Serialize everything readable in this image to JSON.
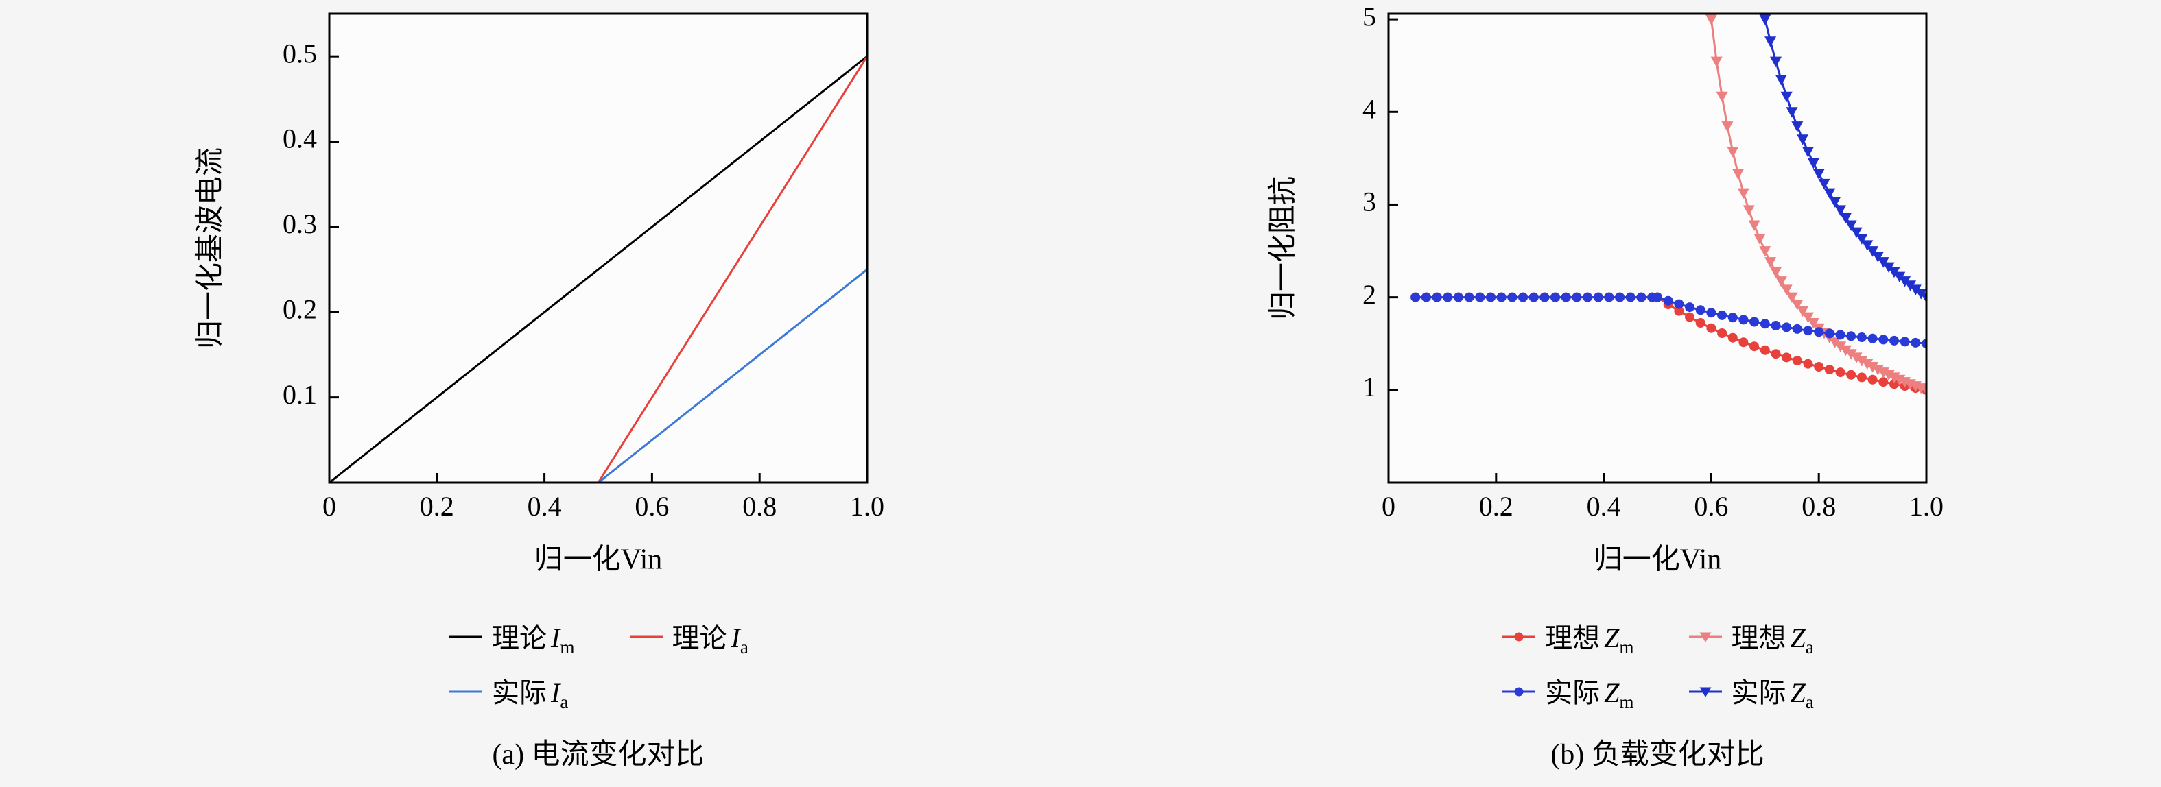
{
  "figure": {
    "background": "#f5f5f5",
    "plot_background": "#fcfcfc",
    "axis_color": "#000000"
  },
  "chart_data": [
    {
      "type": "line",
      "caption": "(a) 电流变化对比",
      "xlabel": "归一化Vin",
      "ylabel": "归一化基波电流",
      "xlim": [
        0,
        1.0
      ],
      "ylim": [
        0,
        0.55
      ],
      "xticks": [
        0,
        0.2,
        0.4,
        0.6,
        0.8,
        1.0
      ],
      "xtick_labels": [
        "0",
        "0.2",
        "0.4",
        "0.6",
        "0.8",
        "1.0"
      ],
      "yticks": [
        0.1,
        0.2,
        0.3,
        0.4,
        0.5
      ],
      "ytick_labels": [
        "0.1",
        "0.2",
        "0.3",
        "0.4",
        "0.5"
      ],
      "grid": false,
      "legend_position": "below",
      "series": [
        {
          "label": "理论",
          "sym": "I",
          "sub": "m",
          "color": "#000000",
          "marker": "none",
          "x": [
            0,
            1.0
          ],
          "y": [
            0,
            0.5
          ]
        },
        {
          "label": "理论",
          "sym": "I",
          "sub": "a",
          "color": "#e8413c",
          "marker": "none",
          "x": [
            0,
            0.5,
            1.0
          ],
          "y": [
            0,
            0,
            0.5
          ]
        },
        {
          "label": "实际",
          "sym": "I",
          "sub": "a",
          "color": "#3b78d8",
          "marker": "none",
          "x": [
            0,
            0.5,
            1.0
          ],
          "y": [
            0,
            0,
            0.25
          ]
        }
      ]
    },
    {
      "type": "line",
      "caption": "(b) 负载变化对比",
      "xlabel": "归一化Vin",
      "ylabel": "归一化阻抗",
      "xlim": [
        0,
        1.0
      ],
      "ylim": [
        0,
        5.06
      ],
      "xticks": [
        0,
        0.2,
        0.4,
        0.6,
        0.8,
        1.0
      ],
      "xtick_labels": [
        "0",
        "0.2",
        "0.4",
        "0.6",
        "0.8",
        "1.0"
      ],
      "yticks": [
        1,
        2,
        3,
        4,
        5
      ],
      "ytick_labels": [
        "1",
        "2",
        "3",
        "4",
        "5"
      ],
      "grid": false,
      "legend_position": "below",
      "series": [
        {
          "label": "理想",
          "sym": "Z",
          "sub": "m",
          "color": "#e8413c",
          "marker": "circle",
          "x": [
            0.05,
            0.07,
            0.09,
            0.11,
            0.13,
            0.15,
            0.17,
            0.19,
            0.21,
            0.23,
            0.25,
            0.27,
            0.29,
            0.31,
            0.33,
            0.35,
            0.37,
            0.39,
            0.41,
            0.43,
            0.45,
            0.47,
            0.49,
            0.5,
            0.52,
            0.54,
            0.56,
            0.58,
            0.6,
            0.62,
            0.64,
            0.66,
            0.68,
            0.7,
            0.72,
            0.74,
            0.76,
            0.78,
            0.8,
            0.82,
            0.84,
            0.86,
            0.88,
            0.9,
            0.92,
            0.94,
            0.96,
            0.98,
            1.0
          ],
          "y": [
            2,
            2,
            2,
            2,
            2,
            2,
            2,
            2,
            2,
            2,
            2,
            2,
            2,
            2,
            2,
            2,
            2,
            2,
            2,
            2,
            2,
            2,
            2,
            2,
            1.923,
            1.852,
            1.786,
            1.724,
            1.667,
            1.613,
            1.563,
            1.515,
            1.471,
            1.429,
            1.389,
            1.351,
            1.316,
            1.282,
            1.25,
            1.22,
            1.19,
            1.163,
            1.136,
            1.111,
            1.087,
            1.064,
            1.042,
            1.02,
            1.0
          ]
        },
        {
          "label": "理想",
          "sym": "Z",
          "sub": "a",
          "color": "#ec8080",
          "marker": "triangle-down",
          "x": [
            0.59,
            0.6,
            0.61,
            0.62,
            0.63,
            0.64,
            0.65,
            0.66,
            0.67,
            0.68,
            0.69,
            0.7,
            0.71,
            0.72,
            0.73,
            0.74,
            0.75,
            0.76,
            0.77,
            0.78,
            0.79,
            0.8,
            0.81,
            0.82,
            0.83,
            0.84,
            0.85,
            0.86,
            0.87,
            0.88,
            0.89,
            0.9,
            0.91,
            0.92,
            0.93,
            0.94,
            0.95,
            0.96,
            0.97,
            0.98,
            0.99,
            1.0
          ],
          "y": [
            5.556,
            5.0,
            4.545,
            4.167,
            3.846,
            3.571,
            3.333,
            3.125,
            2.941,
            2.778,
            2.632,
            2.5,
            2.381,
            2.273,
            2.174,
            2.083,
            2.0,
            1.923,
            1.852,
            1.786,
            1.724,
            1.667,
            1.613,
            1.563,
            1.515,
            1.471,
            1.429,
            1.389,
            1.351,
            1.316,
            1.282,
            1.25,
            1.22,
            1.19,
            1.163,
            1.136,
            1.111,
            1.087,
            1.064,
            1.042,
            1.02,
            1.0
          ]
        },
        {
          "label": "实际",
          "sym": "Z",
          "sub": "m",
          "color": "#2a3ad6",
          "marker": "circle",
          "x": [
            0.05,
            0.07,
            0.09,
            0.11,
            0.13,
            0.15,
            0.17,
            0.19,
            0.21,
            0.23,
            0.25,
            0.27,
            0.29,
            0.31,
            0.33,
            0.35,
            0.37,
            0.39,
            0.41,
            0.43,
            0.45,
            0.47,
            0.49,
            0.5,
            0.52,
            0.54,
            0.56,
            0.58,
            0.6,
            0.62,
            0.64,
            0.66,
            0.68,
            0.7,
            0.72,
            0.74,
            0.76,
            0.78,
            0.8,
            0.82,
            0.84,
            0.86,
            0.88,
            0.9,
            0.92,
            0.94,
            0.96,
            0.98,
            1.0
          ],
          "y": [
            2,
            2,
            2,
            2,
            2,
            2,
            2,
            2,
            2,
            2,
            2,
            2,
            2,
            2,
            2,
            2,
            2,
            2,
            2,
            2,
            2,
            2,
            2,
            2,
            1.962,
            1.926,
            1.893,
            1.862,
            1.833,
            1.806,
            1.781,
            1.758,
            1.735,
            1.714,
            1.694,
            1.676,
            1.658,
            1.641,
            1.625,
            1.61,
            1.595,
            1.581,
            1.568,
            1.556,
            1.543,
            1.532,
            1.521,
            1.51,
            1.5
          ]
        },
        {
          "label": "实际",
          "sym": "Z",
          "sub": "a",
          "color": "#2030cc",
          "marker": "triangle-down",
          "x": [
            0.68,
            0.69,
            0.7,
            0.71,
            0.72,
            0.73,
            0.74,
            0.75,
            0.76,
            0.77,
            0.78,
            0.79,
            0.8,
            0.81,
            0.82,
            0.83,
            0.84,
            0.85,
            0.86,
            0.87,
            0.88,
            0.89,
            0.9,
            0.91,
            0.92,
            0.93,
            0.94,
            0.95,
            0.96,
            0.97,
            0.98,
            0.99,
            1.0
          ],
          "y": [
            5.556,
            5.263,
            5.0,
            4.762,
            4.545,
            4.348,
            4.167,
            4.0,
            3.846,
            3.704,
            3.571,
            3.448,
            3.333,
            3.226,
            3.125,
            3.03,
            2.941,
            2.857,
            2.778,
            2.703,
            2.632,
            2.564,
            2.5,
            2.439,
            2.381,
            2.326,
            2.273,
            2.222,
            2.174,
            2.128,
            2.083,
            2.041,
            2.0
          ]
        }
      ]
    }
  ]
}
